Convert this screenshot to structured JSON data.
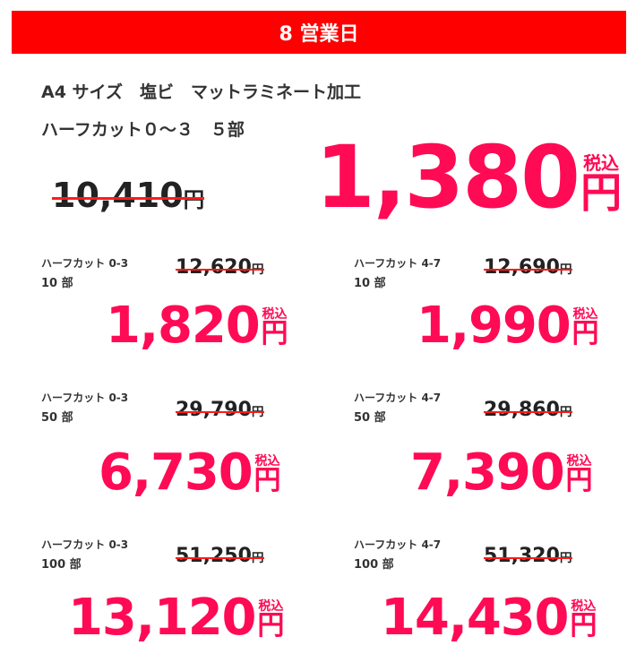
{
  "banner": {
    "text": "8 営業日",
    "color": "#ff0000"
  },
  "spec": {
    "line1": "A4 サイズ　塩ビ　マットラミネート加工",
    "line2": "ハーフカット０～３　５部"
  },
  "main": {
    "original": "10,410",
    "original_unit": "円",
    "price": "1,380",
    "tax_label": "税込",
    "unit": "円"
  },
  "items": [
    {
      "type": "ハーフカット 0-3",
      "qty": "10 部",
      "original": "12,620",
      "price": "1,820"
    },
    {
      "type": "ハーフカット 4-7",
      "qty": "10 部",
      "original": "12,690",
      "price": "1,990"
    },
    {
      "type": "ハーフカット 0-3",
      "qty": "50 部",
      "original": "29,790",
      "price": "6,730"
    },
    {
      "type": "ハーフカット 4-7",
      "qty": "50 部",
      "original": "29,860",
      "price": "7,390"
    },
    {
      "type": "ハーフカット 0-3",
      "qty": "100 部",
      "original": "51,250",
      "price": "13,120"
    },
    {
      "type": "ハーフカット 4-7",
      "qty": "100 部",
      "original": "51,320",
      "price": "14,430"
    }
  ],
  "colors": {
    "price": "#ff0a54",
    "strike": "#ff1a1a"
  }
}
